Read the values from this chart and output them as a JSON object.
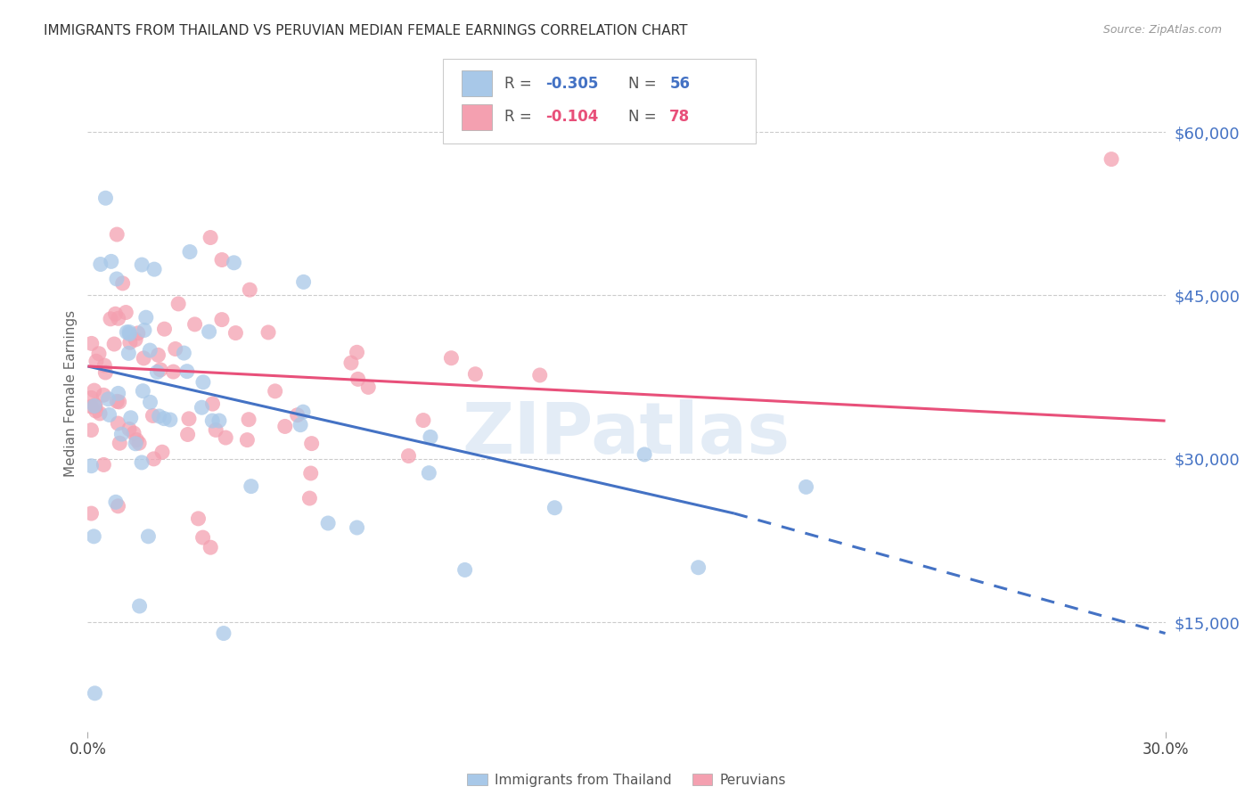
{
  "title": "IMMIGRANTS FROM THAILAND VS PERUVIAN MEDIAN FEMALE EARNINGS CORRELATION CHART",
  "source": "Source: ZipAtlas.com",
  "ylabel": "Median Female Earnings",
  "xlim": [
    0.0,
    0.3
  ],
  "ylim": [
    5000,
    67000
  ],
  "yticks": [
    15000,
    30000,
    45000,
    60000
  ],
  "ytick_labels": [
    "$15,000",
    "$30,000",
    "$45,000",
    "$60,000"
  ],
  "legend_r_blue": "-0.305",
  "legend_n_blue": "56",
  "legend_r_pink": "-0.104",
  "legend_n_pink": "78",
  "blue_color": "#a8c8e8",
  "pink_color": "#f4a0b0",
  "blue_line_color": "#4472c4",
  "pink_line_color": "#e8507a",
  "background_color": "#ffffff",
  "watermark": "ZIPatlas",
  "blue_line_x0": 0.0,
  "blue_line_y0": 38500,
  "blue_line_x1": 0.18,
  "blue_line_y1": 25000,
  "blue_line_dash_x1": 0.3,
  "blue_line_dash_y1": 14000,
  "pink_line_x0": 0.0,
  "pink_line_y0": 38500,
  "pink_line_x1": 0.3,
  "pink_line_y1": 33500
}
